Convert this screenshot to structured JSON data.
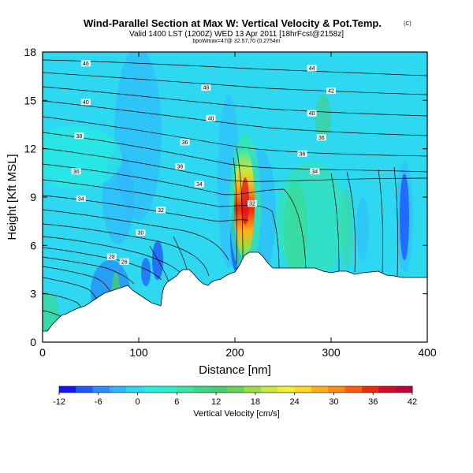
{
  "chart_data": {
    "type": "heatmap",
    "title": "Wind-Parallel Section at Max W: Vertical Velocity & Pot.Temp.",
    "title_mark": "(C)",
    "subtitle": "Valid 1400 LST (1200Z) WED 13 Apr 2011 [18hrFcst@2158z]",
    "subtitle2": "bpoWmax=47@ 32.57,70 (0.2754m",
    "xlabel": "Distance [nm]",
    "ylabel": "Height [Kft MSL]",
    "xlim": [
      0,
      400
    ],
    "ylim": [
      0,
      18
    ],
    "x_ticks": [
      0,
      100,
      200,
      300,
      400
    ],
    "y_ticks": [
      0,
      3,
      6,
      9,
      12,
      15,
      18
    ],
    "colorbar": {
      "label": "Vertical Velocity [cm/s]",
      "ticks": [
        -12,
        -6,
        0,
        6,
        12,
        18,
        24,
        30,
        36,
        42
      ],
      "colors": [
        "#1414ff",
        "#1e5aff",
        "#2a8cff",
        "#30b4ff",
        "#2ed8f0",
        "#26f0e0",
        "#2ef0c8",
        "#36e8a8",
        "#3ad88a",
        "#48cc70",
        "#6ad25a",
        "#98de46",
        "#c8ea3a",
        "#f0f034",
        "#ffd824",
        "#ffb018",
        "#ff8a10",
        "#ff5c0c",
        "#f02a0a",
        "#d80a2a",
        "#c0003a"
      ]
    },
    "theta_contour_labels": [
      {
        "label": "46",
        "x": 45,
        "y": 17.3
      },
      {
        "label": "44",
        "x": 280,
        "y": 17.0
      },
      {
        "label": "42",
        "x": 300,
        "y": 15.6
      },
      {
        "label": "48",
        "x": 170,
        "y": 15.8
      },
      {
        "label": "40",
        "x": 45,
        "y": 14.9
      },
      {
        "label": "40",
        "x": 175,
        "y": 13.9
      },
      {
        "label": "40",
        "x": 280,
        "y": 14.2
      },
      {
        "label": "38",
        "x": 38,
        "y": 12.8
      },
      {
        "label": "36",
        "x": 148,
        "y": 12.4
      },
      {
        "label": "36",
        "x": 290,
        "y": 12.7
      },
      {
        "label": "38",
        "x": 270,
        "y": 11.7
      },
      {
        "label": "36",
        "x": 35,
        "y": 10.6
      },
      {
        "label": "36",
        "x": 143,
        "y": 10.9
      },
      {
        "label": "34",
        "x": 283,
        "y": 10.6
      },
      {
        "label": "34",
        "x": 163,
        "y": 9.8
      },
      {
        "label": "34",
        "x": 40,
        "y": 8.9
      },
      {
        "label": "32",
        "x": 123,
        "y": 8.2
      },
      {
        "label": "32",
        "x": 218,
        "y": 8.6
      },
      {
        "label": "30",
        "x": 102,
        "y": 6.8
      },
      {
        "label": "28",
        "x": 72,
        "y": 5.3
      },
      {
        "label": "26",
        "x": 85,
        "y": 5.0
      }
    ]
  }
}
